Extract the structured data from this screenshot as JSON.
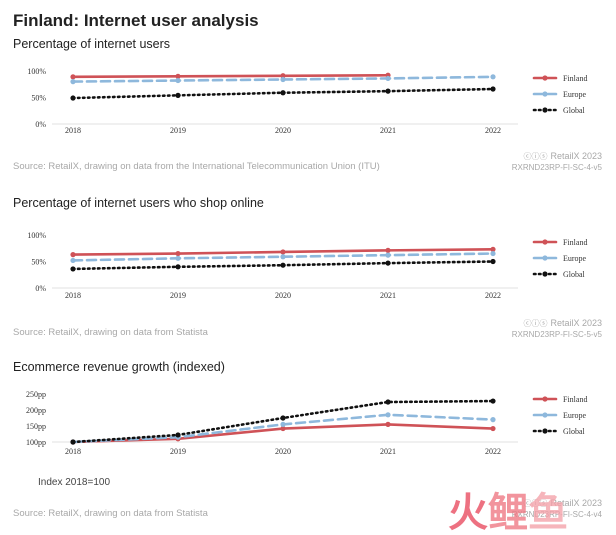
{
  "page": {
    "title": "Finland: Internet user analysis",
    "note": "Index 2018=100",
    "watermark_text": "火鲤鱼"
  },
  "colors": {
    "finland": "#cf5257",
    "europe": "#8eb8dc",
    "global": "#111111"
  },
  "chart_data": [
    {
      "type": "line",
      "title": "Percentage of internet users",
      "x": [
        "2018",
        "2019",
        "2020",
        "2021",
        "2022"
      ],
      "y_ticks": [
        "0%",
        "50%",
        "100%"
      ],
      "ylim": [
        0,
        100
      ],
      "series": [
        {
          "name": "Finland",
          "values": [
            89,
            90,
            91,
            92,
            null
          ],
          "style": "solid",
          "color": "#cf5257"
        },
        {
          "name": "Europe",
          "values": [
            80,
            82,
            84,
            86,
            89
          ],
          "style": "dashed",
          "color": "#8eb8dc"
        },
        {
          "name": "Global",
          "values": [
            49,
            54,
            59,
            62,
            66
          ],
          "style": "dotted",
          "color": "#111111"
        }
      ],
      "legend_position": "right",
      "source": "Source: RetailX, drawing on data from the International Telecommunication Union (ITU)",
      "brand": "RetailX 2023",
      "code": "RXRND23RP-FI-SC-4-v5"
    },
    {
      "type": "line",
      "title": "Percentage of internet users who shop online",
      "x": [
        "2018",
        "2019",
        "2020",
        "2021",
        "2022"
      ],
      "y_ticks": [
        "0%",
        "50%",
        "100%"
      ],
      "ylim": [
        0,
        100
      ],
      "series": [
        {
          "name": "Finland",
          "values": [
            63,
            65,
            68,
            71,
            73
          ],
          "style": "solid",
          "color": "#cf5257"
        },
        {
          "name": "Europe",
          "values": [
            52,
            56,
            59,
            62,
            65
          ],
          "style": "dashed",
          "color": "#8eb8dc"
        },
        {
          "name": "Global",
          "values": [
            36,
            40,
            43,
            47,
            50
          ],
          "style": "dotted",
          "color": "#111111"
        }
      ],
      "legend_position": "right",
      "source": "Source: RetailX, drawing on data from Statista",
      "brand": "RetailX 2023",
      "code": "RXRND23RP-FI-SC-5-v5"
    },
    {
      "type": "line",
      "title": "Ecommerce revenue growth (indexed)",
      "x": [
        "2018",
        "2019",
        "2020",
        "2021",
        "2022"
      ],
      "y_ticks": [
        "100pp",
        "150pp",
        "200pp",
        "250pp"
      ],
      "ylim": [
        100,
        250
      ],
      "series": [
        {
          "name": "Finland",
          "values": [
            100,
            110,
            142,
            155,
            142
          ],
          "style": "solid",
          "color": "#cf5257"
        },
        {
          "name": "Europe",
          "values": [
            100,
            115,
            155,
            185,
            170
          ],
          "style": "dashed",
          "color": "#8eb8dc"
        },
        {
          "name": "Global",
          "values": [
            100,
            122,
            175,
            225,
            228
          ],
          "style": "dotted",
          "color": "#111111"
        }
      ],
      "legend_position": "right",
      "source": "Source: RetailX, drawing on data from Statista",
      "brand": "RetailX 2023",
      "code": "RXRND23RP-FI-SC-4-v4"
    }
  ]
}
